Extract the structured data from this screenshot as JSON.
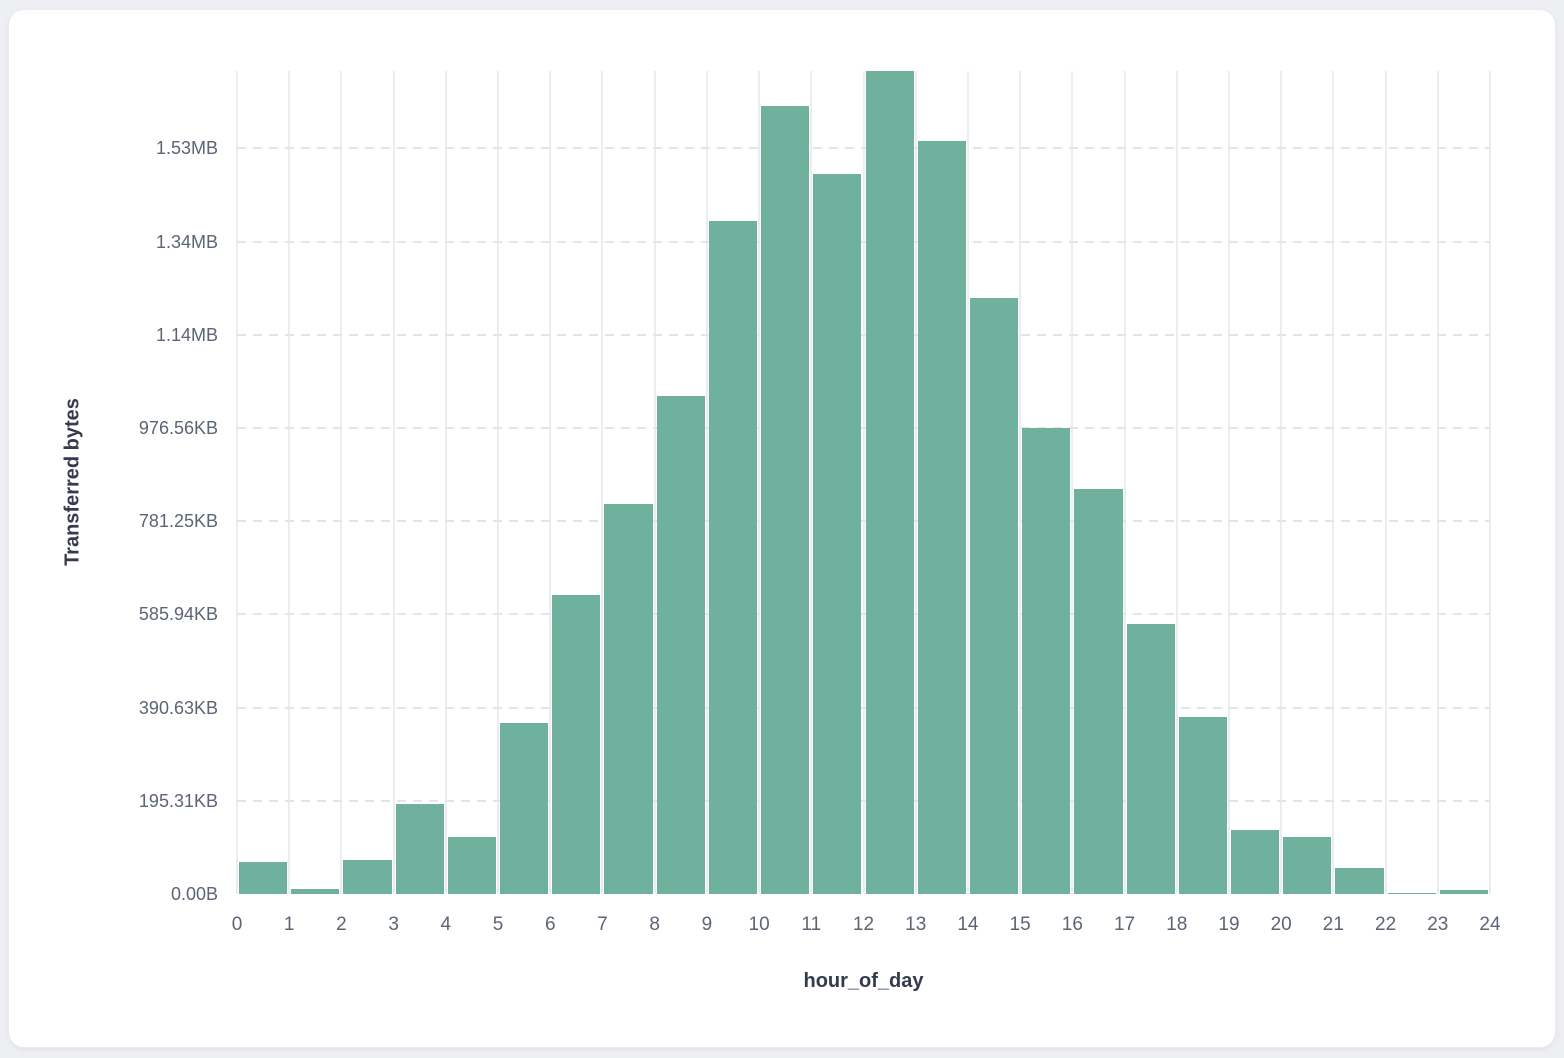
{
  "chart_data": {
    "type": "bar",
    "title": "",
    "xlabel": "hour_of_day",
    "ylabel": "Transferred bytes",
    "categories": [
      0,
      1,
      2,
      3,
      4,
      5,
      6,
      7,
      8,
      9,
      10,
      11,
      12,
      13,
      14,
      15,
      16,
      17,
      18,
      19,
      20,
      21,
      22,
      23
    ],
    "values": [
      69000,
      11000,
      73000,
      193000,
      122000,
      367000,
      642000,
      836000,
      1068000,
      1444000,
      1690000,
      1544000,
      1766000,
      1615000,
      1280000,
      1001000,
      870000,
      580000,
      380000,
      138000,
      122000,
      56000,
      3000,
      9000
    ],
    "values_unit": "bytes",
    "x_tick_labels": [
      "0",
      "1",
      "2",
      "3",
      "4",
      "5",
      "6",
      "7",
      "8",
      "9",
      "10",
      "11",
      "12",
      "13",
      "14",
      "15",
      "16",
      "17",
      "18",
      "19",
      "20",
      "21",
      "22",
      "23",
      "24"
    ],
    "y_ticks": [
      {
        "value": 0,
        "label": "0.00B"
      },
      {
        "value": 200000,
        "label": "195.31KB"
      },
      {
        "value": 400000,
        "label": "390.63KB"
      },
      {
        "value": 600000,
        "label": "585.94KB"
      },
      {
        "value": 800000,
        "label": "781.25KB"
      },
      {
        "value": 1000000,
        "label": "976.56KB"
      },
      {
        "value": 1200000,
        "label": "1.14MB"
      },
      {
        "value": 1400000,
        "label": "1.34MB"
      },
      {
        "value": 1600000,
        "label": "1.53MB"
      }
    ],
    "xlim": [
      0,
      24
    ],
    "ylim": [
      0,
      1766000
    ],
    "bar_color": "#6FB19C",
    "grid": {
      "vertical": "solid",
      "horizontal": "dashed"
    },
    "legend_position": "none"
  }
}
